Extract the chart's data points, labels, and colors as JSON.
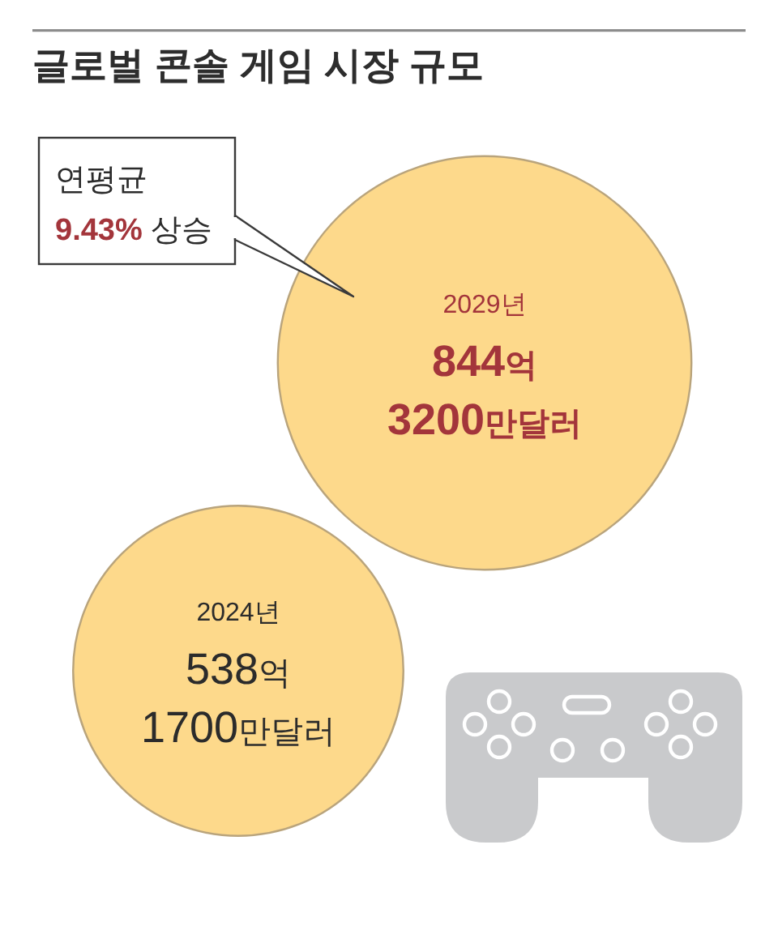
{
  "chart_data": {
    "type": "other",
    "title": "글로벌 콘솔 게임 시장 규모",
    "categories": [
      "2024년",
      "2029년"
    ],
    "values": [
      538.17,
      844.32
    ],
    "value_labels": [
      "538억 1700만달러",
      "844억 3200만달러"
    ],
    "colors": [
      "#fdd98b",
      "#fdd98b"
    ],
    "annotations": [
      "연평균 9.43% 상승"
    ]
  }
}
